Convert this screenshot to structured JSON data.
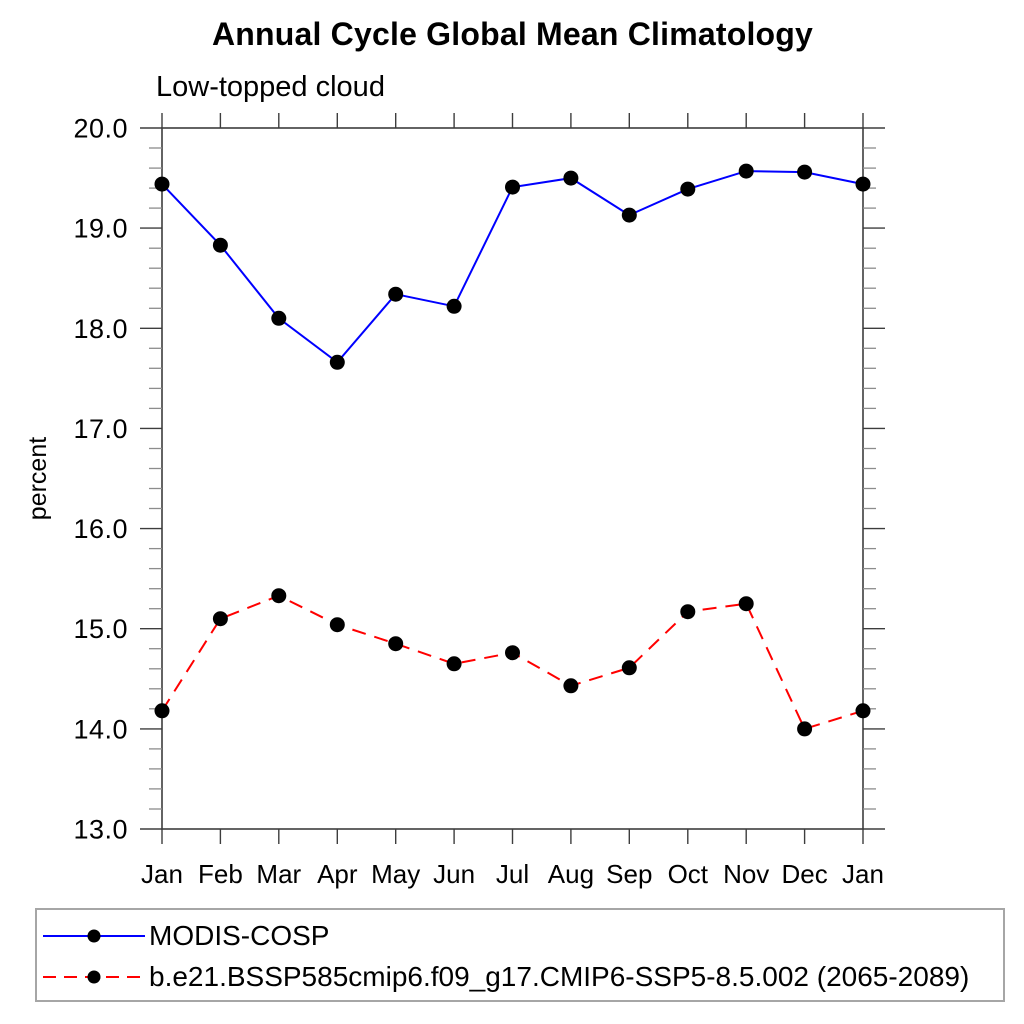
{
  "page": {
    "background": "#ffffff",
    "text_color": "#000000",
    "axis_color": "#3d3d3d",
    "minor_tick_color": "#8c8c8c",
    "legend_border_color": "#a6a6a6"
  },
  "chart_data": {
    "type": "line",
    "title": "Annual Cycle Global Mean Climatology",
    "subtitle": "Low-topped cloud",
    "xlabel": "",
    "ylabel": "percent",
    "categories": [
      "Jan",
      "Feb",
      "Mar",
      "Apr",
      "May",
      "Jun",
      "Jul",
      "Aug",
      "Sep",
      "Oct",
      "Nov",
      "Dec",
      "Jan"
    ],
    "ylim": [
      13.0,
      20.0
    ],
    "ytick_interval": 1.0,
    "yminor_interval": 0.2,
    "ytick_labels": [
      "13.0",
      "14.0",
      "15.0",
      "16.0",
      "17.0",
      "18.0",
      "19.0",
      "20.0"
    ],
    "grid": false,
    "legend_position": "bottom",
    "series": [
      {
        "name": "MODIS-COSP",
        "color": "#0000ff",
        "line_style": "solid",
        "marker": "filled-circle",
        "marker_color": "#000000",
        "values": [
          19.44,
          18.83,
          18.1,
          17.66,
          18.34,
          18.22,
          19.41,
          19.5,
          19.13,
          19.39,
          19.57,
          19.56,
          19.44
        ]
      },
      {
        "name": "b.e21.BSSP585cmip6.f09_g17.CMIP6-SSP5-8.5.002 (2065-2089)",
        "color": "#ff0000",
        "line_style": "dashed",
        "marker": "filled-circle",
        "marker_color": "#000000",
        "values": [
          14.18,
          15.1,
          15.33,
          15.04,
          14.85,
          14.65,
          14.76,
          14.43,
          14.61,
          15.17,
          15.25,
          14.0,
          14.18
        ]
      }
    ]
  }
}
